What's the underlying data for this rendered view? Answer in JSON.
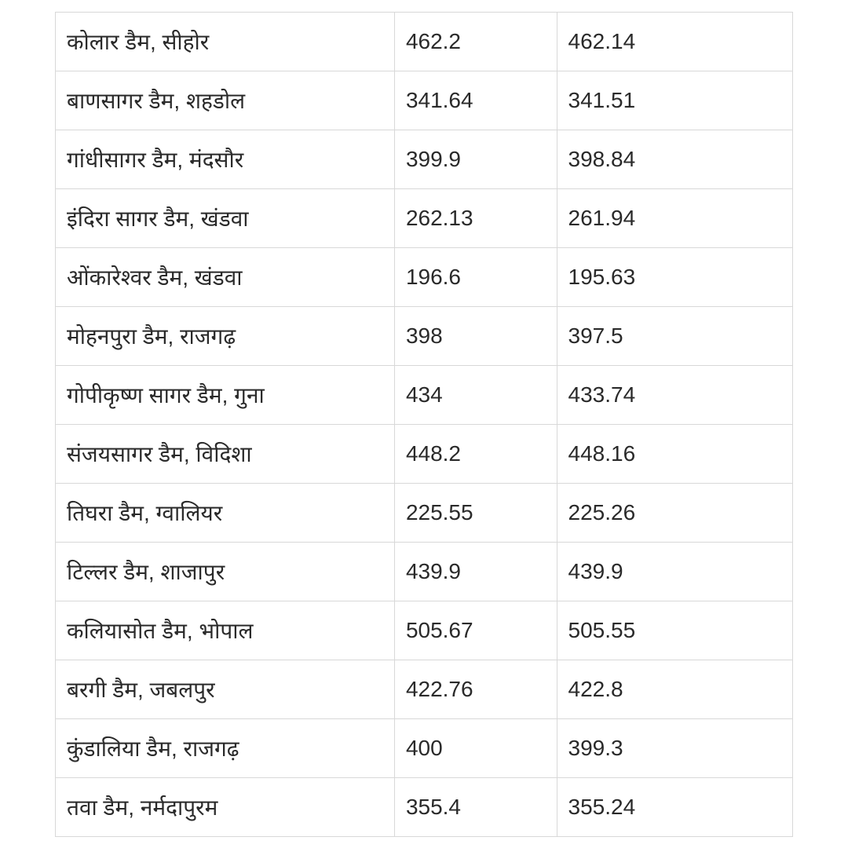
{
  "table": {
    "background_color": "#ffffff",
    "border_color": "#d8d8d8",
    "text_color": "#2a2a2a",
    "font_size": 28,
    "cell_padding": 18,
    "columns": [
      {
        "key": "name",
        "width": "46%",
        "align": "left"
      },
      {
        "key": "value1",
        "width": "22%",
        "align": "left"
      },
      {
        "key": "value2",
        "width": "32%",
        "align": "left"
      }
    ],
    "rows": [
      {
        "name": "कोलार डैम, सीहोर",
        "value1": "462.2",
        "value2": "462.14"
      },
      {
        "name": "बाणसागर डैम, शहडोल",
        "value1": "341.64",
        "value2": "341.51"
      },
      {
        "name": "गांधीसागर डैम, मंदसौर",
        "value1": "399.9",
        "value2": "398.84"
      },
      {
        "name": "इंदिरा सागर डैम, खंडवा",
        "value1": "262.13",
        "value2": "261.94"
      },
      {
        "name": "ओंकारेश्वर डैम, खंडवा",
        "value1": "196.6",
        "value2": "195.63"
      },
      {
        "name": "मोहनपुरा डैम, राजगढ़",
        "value1": "398",
        "value2": "397.5"
      },
      {
        "name": "गोपीकृष्ण सागर डैम, गुना",
        "value1": "434",
        "value2": "433.74"
      },
      {
        "name": "संजयसागर डैम, विदिशा",
        "value1": "448.2",
        "value2": "448.16"
      },
      {
        "name": "तिघरा डैम, ग्वालियर",
        "value1": "225.55",
        "value2": "225.26"
      },
      {
        "name": "टिल्लर डैम, शाजापुर",
        "value1": "439.9",
        "value2": "439.9"
      },
      {
        "name": "कलियासोत डैम, भोपाल",
        "value1": "505.67",
        "value2": "505.55"
      },
      {
        "name": "बरगी डैम, जबलपुर",
        "value1": "422.76",
        "value2": "422.8"
      },
      {
        "name": "कुंडालिया डैम, राजगढ़",
        "value1": "400",
        "value2": "399.3"
      },
      {
        "name": "तवा डैम, नर्मदापुरम",
        "value1": "355.4",
        "value2": "355.24"
      }
    ]
  }
}
